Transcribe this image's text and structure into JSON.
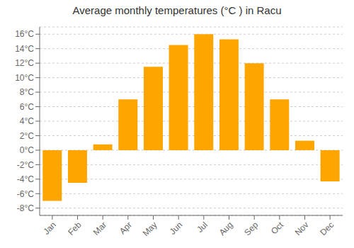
{
  "chart_data": {
    "type": "bar",
    "title": "Average monthly temperatures (°C ) in Racu",
    "categories": [
      "Jan",
      "Feb",
      "Mar",
      "Apr",
      "May",
      "Jun",
      "Jul",
      "Aug",
      "Sep",
      "Oct",
      "Nov",
      "Dec"
    ],
    "values": [
      -7.0,
      -4.5,
      0.8,
      7.0,
      11.5,
      14.5,
      16.0,
      15.3,
      12.0,
      7.0,
      1.3,
      -4.3
    ],
    "color": "#FFA500",
    "ylim": [
      -9,
      17
    ],
    "yticks": [
      {
        "value": -8,
        "label": "-8°C"
      },
      {
        "value": -6,
        "label": "-6°C"
      },
      {
        "value": -4,
        "label": "-4°C"
      },
      {
        "value": -2,
        "label": "-2°C"
      },
      {
        "value": 0,
        "label": "0°C"
      },
      {
        "value": 2,
        "label": "2°C"
      },
      {
        "value": 4,
        "label": "4°C"
      },
      {
        "value": 6,
        "label": "6°C"
      },
      {
        "value": 8,
        "label": "8°C"
      },
      {
        "value": 10,
        "label": "10°C"
      },
      {
        "value": 12,
        "label": "12°C"
      },
      {
        "value": 14,
        "label": "14°C"
      },
      {
        "value": 16,
        "label": "16°C"
      }
    ],
    "grid": true
  }
}
